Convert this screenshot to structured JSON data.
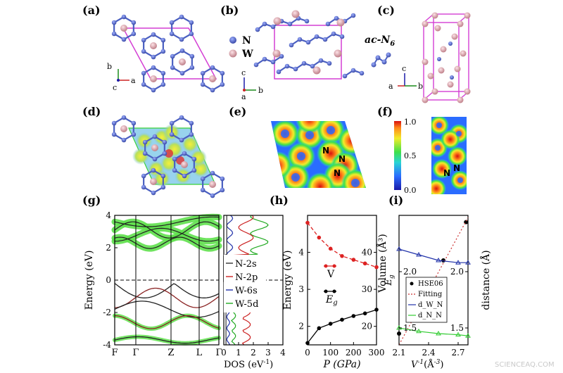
{
  "panels": {
    "a": "(a)",
    "b": "(b)",
    "c": "(c)",
    "d": "(d)",
    "e": "(e)",
    "f": "(f)",
    "g": "(g)",
    "h": "(h)",
    "i": "(i)"
  },
  "legend_b": {
    "n": "N",
    "w": "W"
  },
  "phase_label": "ac-N",
  "phase_sub": "6",
  "axes_a": {
    "b": "b",
    "a": "a",
    "c": "c"
  },
  "axes_b": {
    "c": "c",
    "a": "a",
    "b": "b"
  },
  "axes_c": {
    "c": "c",
    "a": "a",
    "b": "b"
  },
  "colorbar_f": {
    "max": "1.0",
    "mid": "0.5",
    "min": "0.0"
  },
  "atom_labels_e": [
    "N",
    "N",
    "N"
  ],
  "atom_labels_f": [
    "N",
    "N"
  ],
  "colors": {
    "n_atom": "#4a5fc1",
    "w_atom": "#d9a0a8",
    "cell": "#d43fd4",
    "band": "#222222",
    "fatband": "#5fe04c"
  },
  "chart_data": [
    {
      "type": "line",
      "panel": "g",
      "ylabel": "Energy (eV)",
      "y_ticks": [
        "4",
        "2",
        "0",
        "-2",
        "-4"
      ],
      "ylim": [
        -4,
        4
      ],
      "k_labels": [
        "F",
        "Γ",
        "Z",
        "L",
        "Γ"
      ],
      "fermi_level": 0,
      "dos_xlabel": "DOS (eV",
      "dos_xlabel_sup": "-1",
      "dos_xlabel_end": ")",
      "dos_x_ticks": [
        "0",
        "1",
        "2",
        "3",
        "4"
      ],
      "dos_xlim": [
        0,
        4
      ],
      "legend": [
        "N-2s",
        "N-2p",
        "W-6s",
        "W-5d"
      ],
      "legend_colors": [
        "#333333",
        "#cc2222",
        "#2233aa",
        "#22aa22"
      ]
    },
    {
      "type": "line",
      "panel": "h",
      "xlabel": "P (GPa)",
      "x_ticks": [
        "0",
        "100",
        "200",
        "300"
      ],
      "xlim": [
        0,
        300
      ],
      "ylabel_left": "Energy (eV)",
      "y_left_ticks": [
        "2",
        "3",
        "4"
      ],
      "ylim_left": [
        1.5,
        5
      ],
      "ylabel_right": "Volume (Å³)",
      "y_right_ticks": [
        "20",
        "30",
        "40"
      ],
      "ylim_right": [
        15,
        50
      ],
      "series": [
        {
          "name": "V",
          "axis": "right",
          "color": "#dd2222",
          "x": [
            0,
            50,
            100,
            150,
            200,
            250,
            300
          ],
          "y": [
            48,
            44,
            41,
            39,
            38,
            37,
            36
          ]
        },
        {
          "name": "Eg",
          "axis": "left",
          "color": "#000000",
          "x": [
            0,
            50,
            100,
            150,
            200,
            250,
            300
          ],
          "y": [
            1.55,
            1.95,
            2.07,
            2.18,
            2.28,
            2.35,
            2.45
          ]
        }
      ],
      "legend": {
        "v": "V",
        "eg_base": "E",
        "eg_sub": "g"
      }
    },
    {
      "type": "scatter",
      "panel": "i",
      "xlabel_base": "V",
      "xlabel_sup": "-1",
      "xlabel_rest": "(Å",
      "xlabel_sup2": "-3",
      "xlabel_end": ")",
      "x_ticks": [
        "2.1",
        "2.4",
        "2.7"
      ],
      "xlim": [
        2.1,
        2.8
      ],
      "ylabel_left_base": "E",
      "ylabel_left_sub": "g",
      "y_left_ticks": [
        "1.5",
        "2.0"
      ],
      "ylim_left": [
        1.35,
        2.5
      ],
      "ylabel_right": "distance (Å)",
      "y_right_ticks": [
        "1.5",
        "2.0"
      ],
      "ylim_right": [
        1.35,
        2.5
      ],
      "series": [
        {
          "name": "HSE06",
          "color": "#000000",
          "x": [
            2.1,
            2.35,
            2.55,
            2.78
          ],
          "y": [
            1.45,
            1.93,
            2.1,
            2.44
          ]
        },
        {
          "name": "Fitting",
          "color": "#cc3333",
          "x": [
            2.1,
            2.8
          ],
          "y": [
            1.35,
            2.48
          ]
        },
        {
          "name": "d_W_N",
          "color": "#2233aa",
          "x": [
            2.1,
            2.3,
            2.5,
            2.7,
            2.8
          ],
          "y": [
            2.2,
            2.15,
            2.1,
            2.08,
            2.08
          ]
        },
        {
          "name": "d_N_N",
          "color": "#33cc33",
          "x": [
            2.1,
            2.3,
            2.5,
            2.7,
            2.8
          ],
          "y": [
            1.5,
            1.47,
            1.45,
            1.44,
            1.43
          ]
        }
      ],
      "legend": [
        "HSE06",
        "Fitting",
        "d_W_N",
        "d_N_N"
      ]
    }
  ],
  "watermark": "SCIENCEAQ.COM"
}
